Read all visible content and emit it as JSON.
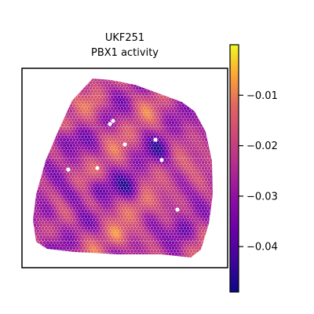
{
  "chart_data": {
    "type": "heatmap",
    "subtype": "spatial-spot-map",
    "title_line1": "UKF251",
    "title_line2": "PBX1 activity",
    "xlabel": "",
    "ylabel": "",
    "grid": false,
    "colormap": "plasma",
    "colorbar": {
      "vmin": -0.049,
      "vmax": 0.0,
      "ticks": [
        -0.01,
        -0.02,
        -0.03,
        -0.04
      ],
      "tick_labels": [
        "−0.01",
        "−0.02",
        "−0.03",
        "−0.04"
      ]
    },
    "value_range_in_tissue": [
      -0.048,
      -0.001
    ],
    "colors": {
      "low": "#0d0887",
      "mid_low": "#6a00a8",
      "mid": "#b12a90",
      "mid_high": "#e16462",
      "high": "#fca636",
      "max": "#f0f921"
    }
  }
}
